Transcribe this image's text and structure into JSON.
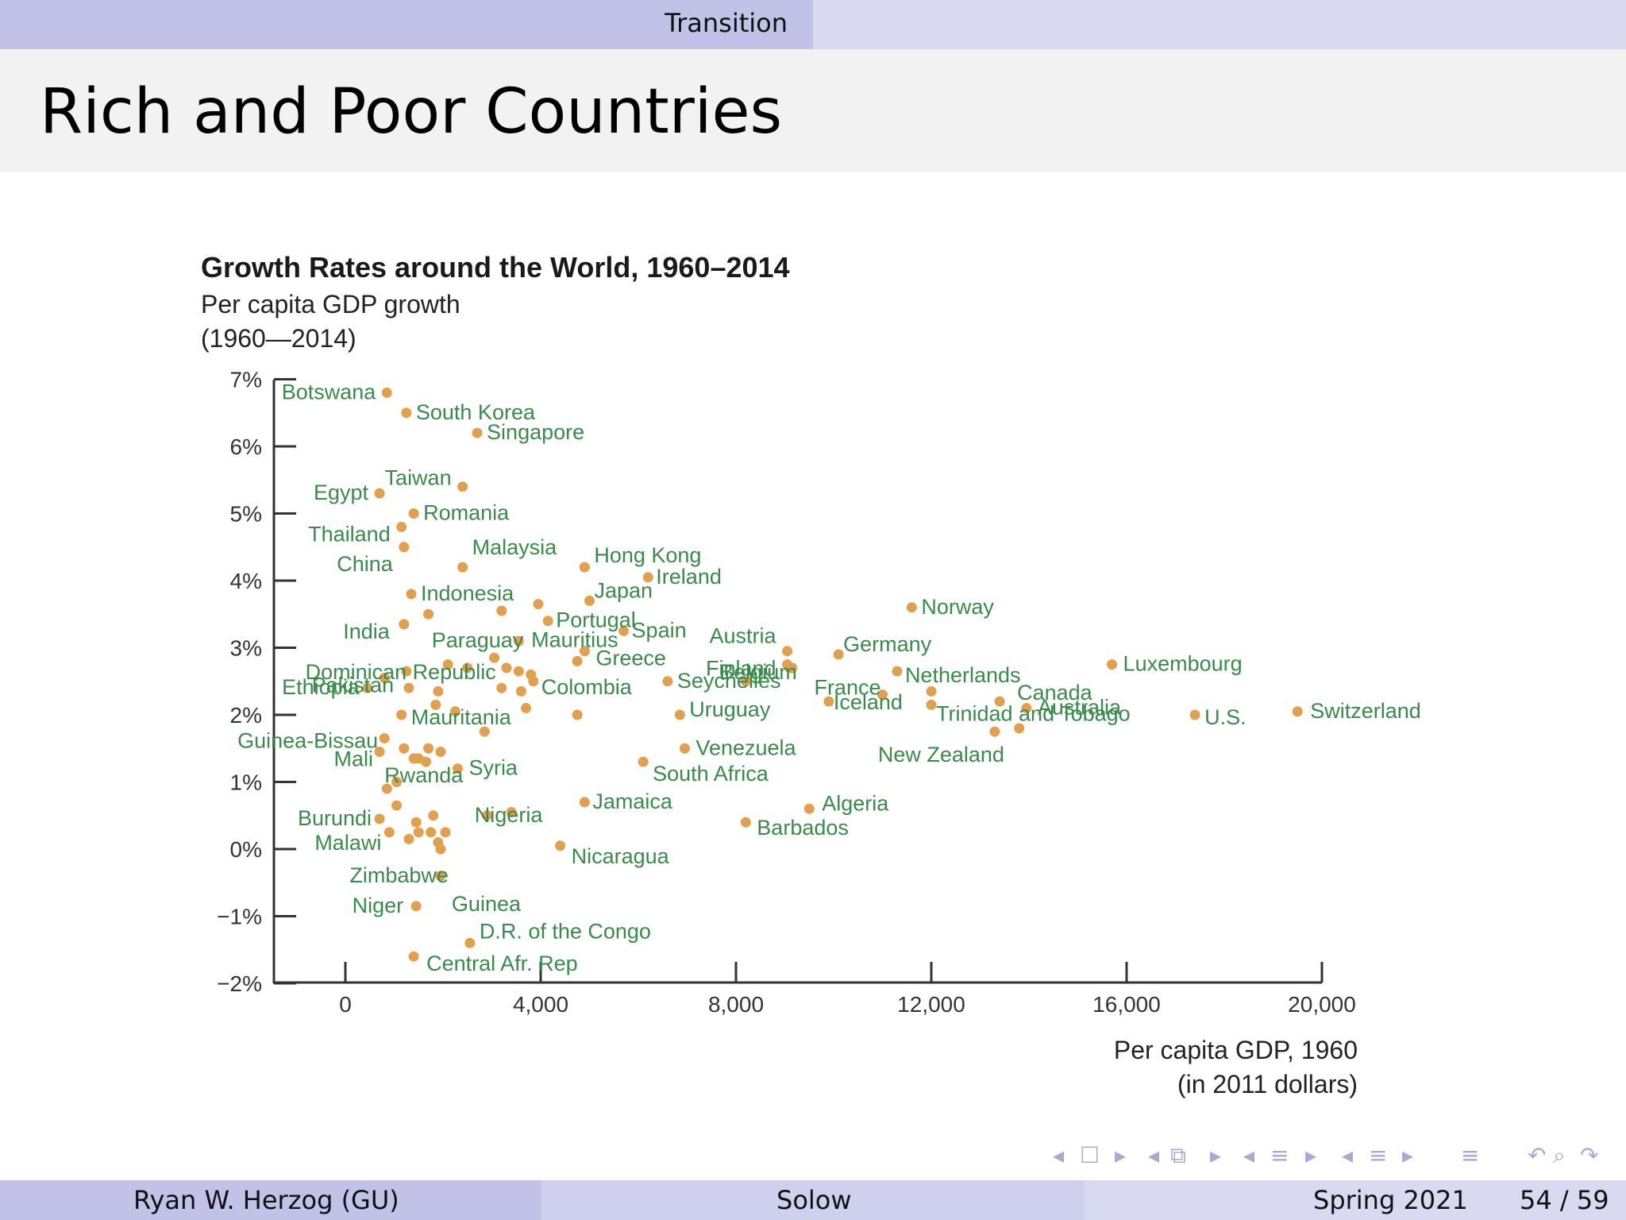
{
  "header": {
    "section": "Transition"
  },
  "slide": {
    "title": "Rich and Poor Countries"
  },
  "footer": {
    "author": "Ryan W. Herzog  (GU)",
    "topic": "Solow",
    "term": "Spring 2021",
    "page": "54 / 59"
  },
  "nav": {
    "frame_prev": "◂",
    "frame_icon": "☐",
    "frame_next": "▸",
    "sub_prev": "◂",
    "sub_icon": "⧉",
    "sub_next": "▸",
    "sec_prev": "◂",
    "sec_icon": "≡",
    "sec_next": "▸",
    "subsec_prev": "◂",
    "subsec_icon": "≡",
    "subsec_next": "▸",
    "toc_icon": "≡",
    "back_icon": "↶",
    "search_icon": "⌕",
    "forward_icon": "↷"
  },
  "colors": {
    "point": "#e0a050",
    "label": "#3a8a4c",
    "axis": "#333333"
  },
  "chart_data": {
    "type": "scatter",
    "title": "Growth Rates around the World, 1960–2014",
    "ylabel_line1": "Per capita GDP growth",
    "ylabel_line2": "(1960—2014)",
    "xlabel_line1": "Per capita GDP, 1960",
    "xlabel_line2": "(in 2011 dollars)",
    "xlim": [
      -1500,
      20000
    ],
    "ylim": [
      -2,
      7
    ],
    "x_ticks": [
      0,
      4000,
      8000,
      12000,
      16000,
      20000
    ],
    "x_tick_labels": [
      "0",
      "4,000",
      "8,000",
      "12,000",
      "16,000",
      "20,000"
    ],
    "y_ticks": [
      7,
      6,
      5,
      4,
      3,
      2,
      1,
      0,
      -1,
      -2
    ],
    "y_tick_labels": [
      "7%",
      "6%",
      "5%",
      "4%",
      "3%",
      "2%",
      "1%",
      "0%",
      "−1%",
      "−2%"
    ],
    "points": [
      {
        "name": "Botswana",
        "x": 850,
        "y": 6.8
      },
      {
        "name": "South Korea",
        "x": 1250,
        "y": 6.5
      },
      {
        "name": "Singapore",
        "x": 2700,
        "y": 6.2
      },
      {
        "name": "Taiwan",
        "x": 2400,
        "y": 5.4
      },
      {
        "name": "Egypt",
        "x": 700,
        "y": 5.3
      },
      {
        "name": "Romania",
        "x": 1400,
        "y": 5.0
      },
      {
        "name": "Thailand",
        "x": 1150,
        "y": 4.8
      },
      {
        "name": "China",
        "x": 1200,
        "y": 4.5
      },
      {
        "name": "Malaysia",
        "x": 2400,
        "y": 4.2
      },
      {
        "name": "Hong Kong",
        "x": 4900,
        "y": 4.2
      },
      {
        "name": "Ireland",
        "x": 6200,
        "y": 4.05
      },
      {
        "name": "Indonesia",
        "x": 1350,
        "y": 3.8
      },
      {
        "name": "Japan",
        "x": 5000,
        "y": 3.7
      },
      {
        "name": "Norway",
        "x": 11600,
        "y": 3.6
      },
      {
        "name": "Portugal",
        "x": 4150,
        "y": 3.4
      },
      {
        "name": "Spain",
        "x": 5700,
        "y": 3.25
      },
      {
        "name": "India",
        "x": 1200,
        "y": 3.35
      },
      {
        "name": "Paraguay",
        "x": 3550,
        "y": 3.1
      },
      {
        "name": "Mauritius",
        "x": 4750,
        "y": 2.8
      },
      {
        "name": "Austria",
        "x": 9050,
        "y": 2.95
      },
      {
        "name": "Finland",
        "x": 9050,
        "y": 2.75
      },
      {
        "name": "Germany",
        "x": 10100,
        "y": 2.9
      },
      {
        "name": "Belgium",
        "x": 9150,
        "y": 2.7
      },
      {
        "name": "Netherlands",
        "x": 11300,
        "y": 2.65
      },
      {
        "name": "Luxembourg",
        "x": 15700,
        "y": 2.75
      },
      {
        "name": "Dominican Republic",
        "x": 2500,
        "y": 2.7
      },
      {
        "name": "Greece",
        "x": 4900,
        "y": 2.95
      },
      {
        "name": "Pakistan",
        "x": 800,
        "y": 2.55
      },
      {
        "name": "Colombia",
        "x": 3850,
        "y": 2.5
      },
      {
        "name": "Seychelles",
        "x": 6600,
        "y": 2.5
      },
      {
        "name": "France",
        "x": 11000,
        "y": 2.3
      },
      {
        "name": "Iceland",
        "x": 9900,
        "y": 2.2
      },
      {
        "name": "Ethiopia",
        "x": 450,
        "y": 2.4
      },
      {
        "name": "Canada",
        "x": 13400,
        "y": 2.2
      },
      {
        "name": "Switzerland",
        "x": 19500,
        "y": 2.05
      },
      {
        "name": "Mauritania",
        "x": 1150,
        "y": 2.0
      },
      {
        "name": "Uruguay",
        "x": 6850,
        "y": 2.0
      },
      {
        "name": "Trinidad and Tobago",
        "x": 12000,
        "y": 2.15
      },
      {
        "name": "Australia",
        "x": 13950,
        "y": 2.1
      },
      {
        "name": "U.S.",
        "x": 17400,
        "y": 2.0
      },
      {
        "name": "Guinea-Bissau",
        "x": 800,
        "y": 1.65
      },
      {
        "name": "Mali",
        "x": 700,
        "y": 1.45
      },
      {
        "name": "Venezuela",
        "x": 6950,
        "y": 1.5
      },
      {
        "name": "New Zealand",
        "x": 13300,
        "y": 1.75
      },
      {
        "name": "Rwanda",
        "x": 1500,
        "y": 1.35
      },
      {
        "name": "Syria",
        "x": 2300,
        "y": 1.2
      },
      {
        "name": "South Africa",
        "x": 6100,
        "y": 1.3
      },
      {
        "name": "Jamaica",
        "x": 4900,
        "y": 0.7
      },
      {
        "name": "Nigeria",
        "x": 2900,
        "y": 0.5
      },
      {
        "name": "Algeria",
        "x": 9500,
        "y": 0.6
      },
      {
        "name": "Burundi",
        "x": 700,
        "y": 0.45
      },
      {
        "name": "Barbados",
        "x": 8200,
        "y": 0.4
      },
      {
        "name": "Malawi",
        "x": 900,
        "y": 0.25
      },
      {
        "name": "Nicaragua",
        "x": 4400,
        "y": 0.05
      },
      {
        "name": "Zimbabwe",
        "x": 1950,
        "y": -0.4
      },
      {
        "name": "Guinea",
        "x": 1950,
        "y": -0.4
      },
      {
        "name": "Niger",
        "x": 1450,
        "y": -0.85
      },
      {
        "name": "D.R. of the Congo",
        "x": 2550,
        "y": -1.4
      },
      {
        "name": "Central Afr. Rep",
        "x": 1400,
        "y": -1.6
      }
    ],
    "unlabeled_points": [
      [
        1700,
        3.5
      ],
      [
        3200,
        3.55
      ],
      [
        3950,
        3.65
      ],
      [
        2100,
        2.75
      ],
      [
        3050,
        2.85
      ],
      [
        3300,
        2.7
      ],
      [
        3550,
        2.65
      ],
      [
        3800,
        2.6
      ],
      [
        3200,
        2.4
      ],
      [
        3600,
        2.35
      ],
      [
        1250,
        2.65
      ],
      [
        1300,
        2.4
      ],
      [
        1900,
        2.35
      ],
      [
        1850,
        2.15
      ],
      [
        2250,
        2.05
      ],
      [
        3700,
        2.1
      ],
      [
        4750,
        2.0
      ],
      [
        2850,
        1.75
      ],
      [
        8200,
        2.5
      ],
      [
        9100,
        2.7
      ],
      [
        12000,
        2.35
      ],
      [
        13800,
        1.8
      ],
      [
        1200,
        1.5
      ],
      [
        1400,
        1.35
      ],
      [
        1700,
        1.5
      ],
      [
        1950,
        1.45
      ],
      [
        1650,
        1.3
      ],
      [
        1050,
        1.0
      ],
      [
        850,
        0.9
      ],
      [
        1050,
        0.65
      ],
      [
        1450,
        0.4
      ],
      [
        1800,
        0.5
      ],
      [
        1300,
        0.15
      ],
      [
        1500,
        0.25
      ],
      [
        1750,
        0.25
      ],
      [
        2050,
        0.25
      ],
      [
        1900,
        0.1
      ],
      [
        1950,
        0.0
      ],
      [
        3400,
        0.55
      ]
    ]
  }
}
